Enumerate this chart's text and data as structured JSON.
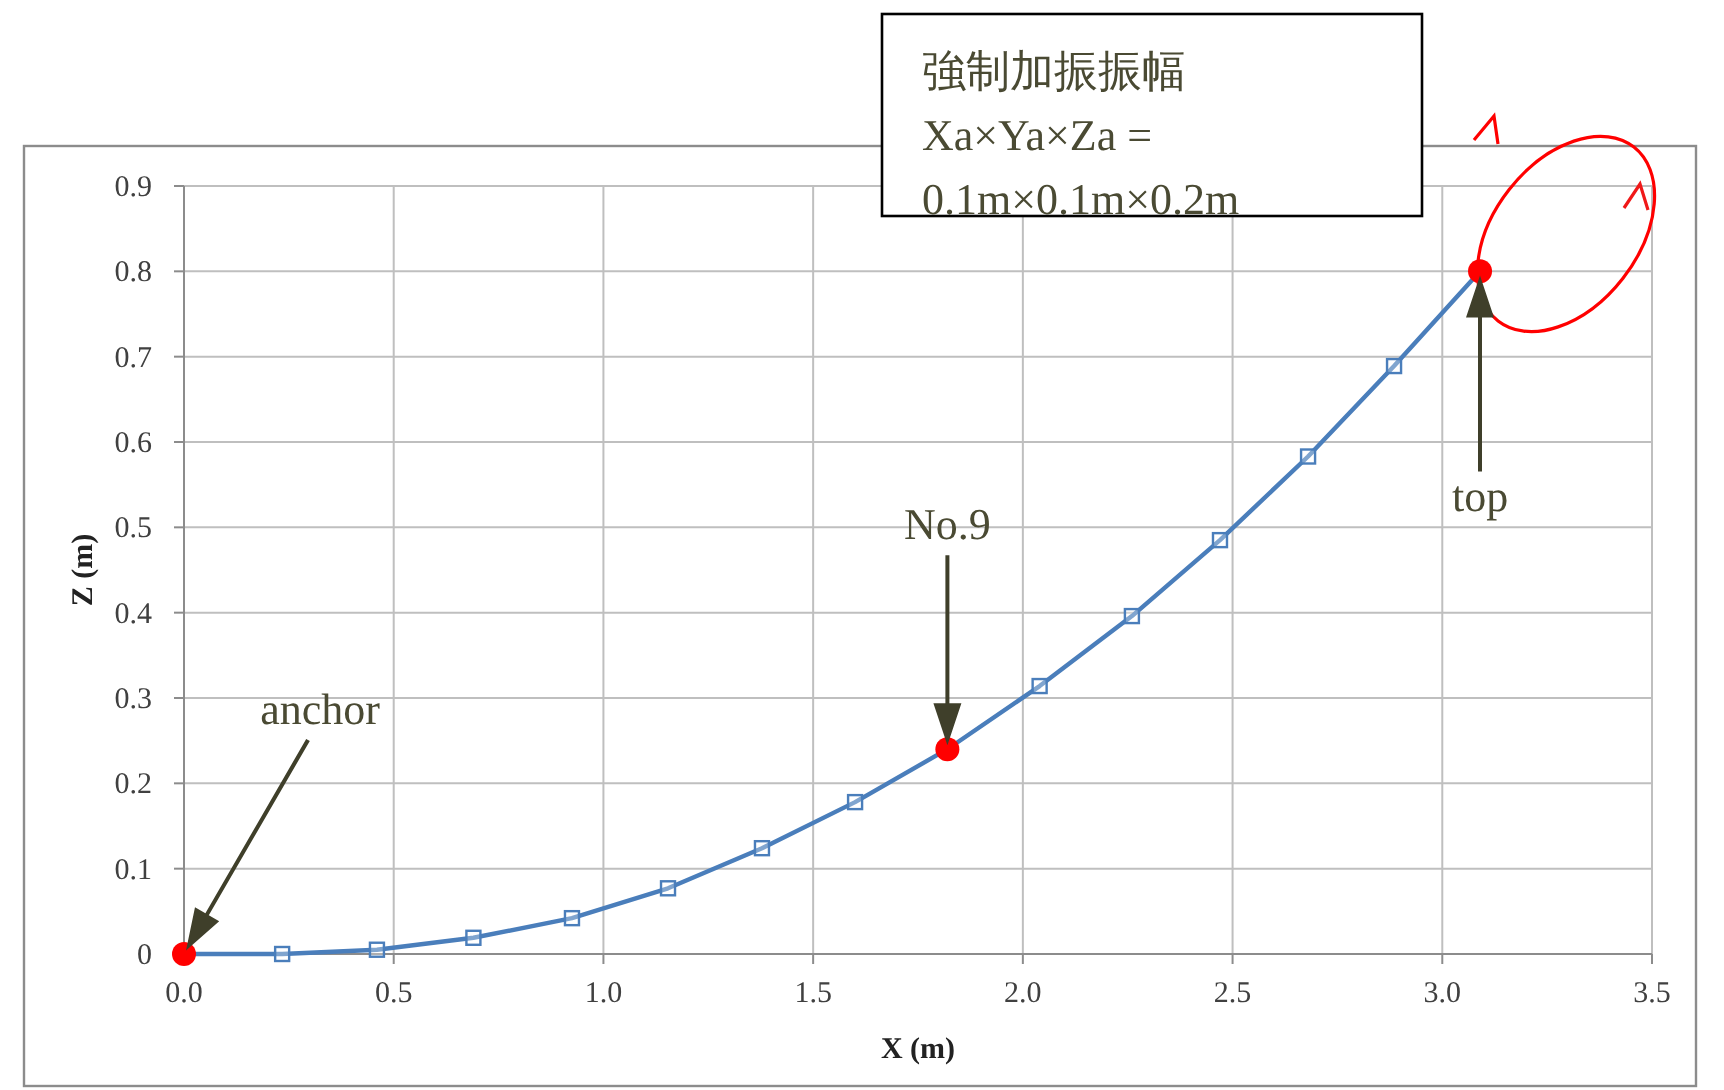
{
  "chart_data": {
    "type": "line",
    "xlabel": "X (m)",
    "ylabel": "Z (m)",
    "xlim": [
      0,
      3.5
    ],
    "ylim": [
      0,
      0.9
    ],
    "xticks": [
      {
        "value": 0,
        "label": "0.0"
      },
      0.5,
      {
        "value": 1,
        "label": "1.0"
      },
      1.5,
      {
        "value": 2,
        "label": "2.0"
      },
      2.5,
      {
        "value": 3,
        "label": "3.0"
      },
      3.5
    ],
    "yticks": [
      0,
      0.1,
      0.2,
      0.3,
      0.4,
      0.5,
      0.6,
      0.7,
      0.8,
      0.9
    ],
    "grid": true,
    "series": [
      {
        "type": "line",
        "color": "#4a7ebb",
        "marker": "none",
        "line_style": "solid",
        "x": [
          0,
          0.234,
          0.46,
          0.69,
          0.925,
          1.154,
          1.378,
          1.6,
          1.82,
          2.04,
          2.26,
          2.47,
          2.68,
          2.885,
          3.09
        ],
        "values": [
          0,
          0,
          0.005,
          0.019,
          0.042,
          0.077,
          0.124,
          0.178,
          0.24,
          0.314,
          0.396,
          0.485,
          0.583,
          0.689,
          0.8
        ]
      },
      {
        "type": "scatter",
        "color": "#4a7ebb",
        "marker": "square",
        "x": [
          0.234,
          0.46,
          0.69,
          0.925,
          1.154,
          1.378,
          1.6,
          2.04,
          2.26,
          2.47,
          2.68,
          2.885
        ],
        "values": [
          0,
          0.005,
          0.019,
          0.042,
          0.077,
          0.124,
          0.178,
          0.314,
          0.396,
          0.485,
          0.583,
          0.689
        ]
      },
      {
        "type": "scatter",
        "color": "#ff0000",
        "marker": "circle",
        "x": [
          0,
          1.82,
          3.09
        ],
        "values": [
          0,
          0.24,
          0.8
        ]
      }
    ],
    "annotations": [
      "anchor",
      "No.9",
      "top",
      "強制加振振幅\nXa×Ya×Za =\n0.1m×0.1m×0.2m"
    ]
  }
}
